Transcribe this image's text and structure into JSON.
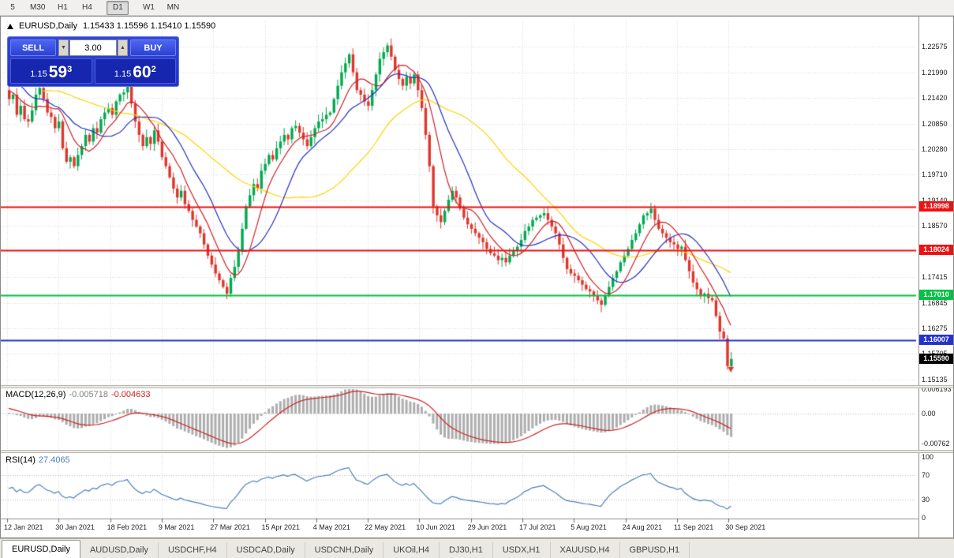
{
  "toolbar": {
    "periods": [
      {
        "label": "5",
        "active": false
      },
      {
        "label": "M30",
        "active": false
      },
      {
        "label": "H1",
        "active": false
      },
      {
        "label": "H4",
        "active": false
      },
      {
        "label": "D1",
        "active": true
      },
      {
        "label": "W1",
        "active": false
      },
      {
        "label": "MN",
        "active": false
      }
    ]
  },
  "chart": {
    "symbol_label": "EURUSD,Daily",
    "ohlc_text": "1.15433 1.15596 1.15410 1.15590",
    "hlines": [
      {
        "price": 1.18998,
        "label": "1.18998",
        "color": "#ee1111"
      },
      {
        "price": 1.18024,
        "label": "1.18024",
        "color": "#ee1111"
      },
      {
        "price": 1.1701,
        "label": "1.17010",
        "color": "#00c244"
      },
      {
        "price": 1.16007,
        "label": "1.16007",
        "color": "#2433cc"
      }
    ],
    "current_price": {
      "price": 1.1559,
      "label": "1.15590",
      "color": "#000000"
    }
  },
  "trade": {
    "sell_label": "SELL",
    "buy_label": "BUY",
    "volume": "3.00",
    "sell_small": "1.15",
    "sell_big": "59",
    "sell_sup": "3",
    "buy_small": "1.15",
    "buy_big": "60",
    "buy_sup": "2"
  },
  "macd": {
    "label": "MACD(12,26,9)",
    "value_main": "-0.005718",
    "value_signal": "-0.004633",
    "axis": [
      {
        "label": "0.006193",
        "value": 0.006193
      },
      {
        "label": "0.00",
        "value": 0
      },
      {
        "label": "-0.00762",
        "value": -0.00762
      }
    ]
  },
  "rsi": {
    "label": "RSI(14)",
    "value": "27.4065",
    "axis": [
      {
        "label": "100",
        "value": 100
      },
      {
        "label": "70",
        "value": 70
      },
      {
        "label": "30",
        "value": 30
      },
      {
        "label": "0",
        "value": 0
      }
    ],
    "levels": [
      70,
      30
    ]
  },
  "axis": {
    "price_ticks": [
      "1.22575",
      "1.21990",
      "1.21420",
      "1.20850",
      "1.20280",
      "1.19710",
      "1.19140",
      "1.18570",
      "1.17415",
      "1.16845",
      "1.16275",
      "1.15705",
      "1.15135"
    ]
  },
  "dates": [
    "12 Jan 2021",
    "30 Jan 2021",
    "18 Feb 2021",
    "9 Mar 2021",
    "27 Mar 2021",
    "15 Apr 2021",
    "4 May 2021",
    "22 May 2021",
    "10 Jun 2021",
    "29 Jun 2021",
    "17 Jul 2021",
    "5 Aug 2021",
    "24 Aug 2021",
    "11 Sep 2021",
    "30 Sep 2021"
  ],
  "tabs": [
    {
      "label": "EURUSD,Daily",
      "active": true
    },
    {
      "label": "AUDUSD,Daily",
      "active": false
    },
    {
      "label": "USDCHF,H4",
      "active": false
    },
    {
      "label": "USDCAD,Daily",
      "active": false
    },
    {
      "label": "USDCNH,Daily",
      "active": false
    },
    {
      "label": "UKOil,H4",
      "active": false
    },
    {
      "label": "DJ30,H1",
      "active": false
    },
    {
      "label": "USDX,H1",
      "active": false
    },
    {
      "label": "XAUUSD,H4",
      "active": false
    },
    {
      "label": "GBPUSD,H1",
      "active": false
    }
  ],
  "chart_data": {
    "type": "candlestick",
    "symbol": "EURUSD",
    "timeframe": "Daily",
    "title": "EURUSD,Daily",
    "current_bar": {
      "open": 1.15433,
      "high": 1.15596,
      "low": 1.1541,
      "close": 1.1559
    },
    "y_axis_ticks": [
      1.22575,
      1.2199,
      1.2142,
      1.2085,
      1.2028,
      1.1971,
      1.1914,
      1.1857,
      1.17415,
      1.16845,
      1.16275,
      1.15705,
      1.15135
    ],
    "x_axis_dates": [
      "12 Jan 2021",
      "30 Jan 2021",
      "18 Feb 2021",
      "9 Mar 2021",
      "27 Mar 2021",
      "15 Apr 2021",
      "4 May 2021",
      "22 May 2021",
      "10 Jun 2021",
      "29 Jun 2021",
      "17 Jul 2021",
      "5 Aug 2021",
      "24 Aug 2021",
      "11 Sep 2021",
      "30 Sep 2021"
    ],
    "horizontal_levels": [
      1.18998,
      1.18024,
      1.1701,
      1.16007
    ],
    "closes_lead_in": [
      1.2075,
      1.209,
      1.211,
      1.2095,
      1.212,
      1.214,
      1.2125,
      1.215,
      1.2165,
      1.2145,
      1.217,
      1.219,
      1.2175,
      1.22,
      1.2215,
      1.2195,
      1.2225,
      1.2245,
      1.223,
      1.225,
      1.2235,
      1.221,
      1.218,
      1.2155,
      1.217,
      1.219,
      1.216,
      1.213,
      1.2145,
      1.216
    ],
    "closes": [
      1.214,
      1.215,
      1.2105,
      1.2125,
      1.2095,
      1.209,
      1.2115,
      1.215,
      1.2165,
      1.214,
      1.211,
      1.21,
      1.2075,
      1.209,
      1.203,
      1.2,
      1.201,
      1.199,
      1.2015,
      1.2035,
      1.206,
      1.2045,
      1.2075,
      1.2065,
      1.2095,
      1.211,
      1.212,
      1.2105,
      1.2135,
      1.215,
      1.2155,
      1.217,
      1.213,
      1.209,
      1.206,
      1.2035,
      1.2055,
      1.204,
      1.207,
      1.2045,
      1.201,
      1.199,
      1.1965,
      1.194,
      1.192,
      1.1935,
      1.1905,
      1.189,
      1.187,
      1.1855,
      1.184,
      1.1815,
      1.179,
      1.177,
      1.175,
      1.1735,
      1.172,
      1.1705,
      1.174,
      1.1765,
      1.18,
      1.185,
      1.19,
      1.1925,
      1.195,
      1.194,
      1.198,
      1.1995,
      1.2015,
      1.2005,
      1.203,
      1.2045,
      1.206,
      1.205,
      1.2075,
      1.208,
      1.2065,
      1.205,
      1.2035,
      1.2055,
      1.2075,
      1.209,
      1.2095,
      1.2105,
      1.211,
      1.214,
      1.217,
      1.22,
      1.222,
      1.224,
      1.22,
      1.216,
      1.215,
      1.2135,
      1.2125,
      1.216,
      1.2195,
      1.223,
      1.2245,
      1.226,
      1.2235,
      1.2205,
      1.2185,
      1.217,
      1.219,
      1.2175,
      1.2195,
      1.216,
      1.212,
      1.206,
      1.199,
      1.19,
      1.188,
      1.1865,
      1.189,
      1.1915,
      1.1935,
      1.192,
      1.1895,
      1.1875,
      1.186,
      1.185,
      1.184,
      1.183,
      1.182,
      1.1805,
      1.1795,
      1.179,
      1.178,
      1.1785,
      1.1775,
      1.179,
      1.18,
      1.181,
      1.1825,
      1.1845,
      1.1855,
      1.187,
      1.1875,
      1.188,
      1.1885,
      1.187,
      1.1855,
      1.184,
      1.1815,
      1.1785,
      1.176,
      1.175,
      1.1745,
      1.1735,
      1.1725,
      1.1715,
      1.171,
      1.17,
      1.169,
      1.168,
      1.17,
      1.172,
      1.174,
      1.1755,
      1.1775,
      1.179,
      1.1805,
      1.1825,
      1.184,
      1.186,
      1.188,
      1.1885,
      1.1895,
      1.187,
      1.185,
      1.184,
      1.183,
      1.182,
      1.1815,
      1.1805,
      1.181,
      1.178,
      1.1755,
      1.173,
      1.1715,
      1.17,
      1.1705,
      1.1695,
      1.169,
      1.1655,
      1.162,
      1.1605,
      1.1543,
      1.1559
    ],
    "moving_averages": [
      {
        "period": 40,
        "color": "#ffd400"
      },
      {
        "period": 16,
        "color": "#2430c0"
      },
      {
        "period": 8,
        "color": "#d02028"
      }
    ],
    "markers": [
      {
        "type": "arrow-down",
        "bar": 189,
        "price": 1.1536,
        "color": "#e0352c"
      }
    ],
    "indicators": {
      "macd": {
        "params": "12,26,9",
        "main": -0.005718,
        "signal": -0.004633,
        "axis_max": 0.006193,
        "axis_min": -0.00762,
        "histogram_color": "#adadad",
        "signal_color": "#cc2222"
      },
      "rsi": {
        "period": 14,
        "value": 27.4065,
        "levels": [
          70,
          30
        ],
        "line_color": "#4a7fc1"
      }
    },
    "colors": {
      "bull": "#00a94f",
      "bear": "#e0352c",
      "grid": "#d9d9d9",
      "background": "#ffffff"
    }
  }
}
